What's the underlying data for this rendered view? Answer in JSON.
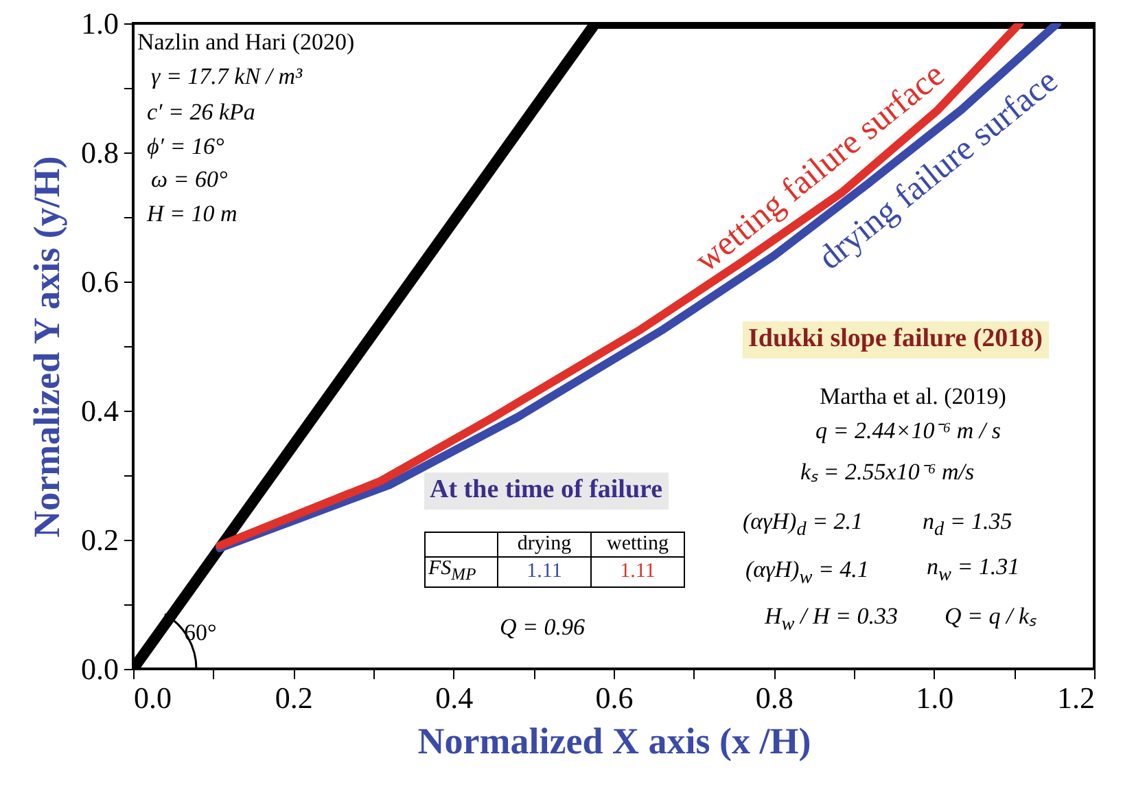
{
  "chart_data": {
    "type": "line",
    "xlabel": "Normalized X axis (x /H)",
    "ylabel": "Normalized Y axis (y/H)",
    "xlim": [
      0,
      1.2
    ],
    "ylim": [
      0,
      1.0
    ],
    "xticks": [
      {
        "value": 0,
        "label": "0.0"
      },
      {
        "value": 0.1,
        "label": null
      },
      0.2,
      {
        "value": 0.3,
        "label": null
      },
      0.4,
      {
        "value": 0.5,
        "label": null
      },
      0.6,
      {
        "value": 0.7,
        "label": null
      },
      0.8,
      {
        "value": 0.9,
        "label": null
      },
      {
        "value": 1.0,
        "label": "1.0"
      },
      {
        "value": 1.1,
        "label": null
      },
      1.2
    ],
    "yticks": [
      {
        "value": 0,
        "label": "0.0"
      },
      {
        "value": 0.1,
        "label": null
      },
      0.2,
      {
        "value": 0.3,
        "label": null
      },
      0.4,
      {
        "value": 0.5,
        "label": null
      },
      0.6,
      {
        "value": 0.7,
        "label": null
      },
      0.8,
      {
        "value": 0.9,
        "label": null
      },
      {
        "value": 1.0,
        "label": "1.0"
      }
    ],
    "series": [
      {
        "color": "#000000",
        "x": [
          0,
          0.577,
          1.2
        ],
        "values": [
          0,
          1.0,
          1.0
        ]
      },
      {
        "name": "drying failure surface",
        "color": "#3a4aaa",
        "x": [
          0.108,
          0.32,
          0.48,
          0.662,
          0.8,
          0.919,
          1.034,
          1.154
        ],
        "values": [
          0.187,
          0.285,
          0.39,
          0.526,
          0.64,
          0.753,
          0.866,
          1.0
        ]
      },
      {
        "name": "wetting failure surface",
        "color": "#e0312a",
        "x": [
          0.108,
          0.309,
          0.45,
          0.634,
          0.76,
          0.885,
          1.005,
          1.107
        ],
        "values": [
          0.191,
          0.291,
          0.39,
          0.526,
          0.63,
          0.738,
          0.866,
          1.0
        ]
      }
    ],
    "annotations": [
      "Nazlin and Hari (2020)",
      "γ = 17.7 kN / m³",
      "c′ = 26 kPa",
      "ϕ′ = 16°",
      "ω = 60°",
      "H = 10 m",
      "60°",
      "Idukki slope failure (2018)",
      "Martha et al. (2019)",
      "q = 2.44×10⁻⁶ m / s",
      "kₛ = 2.55x10⁻⁶ m/s",
      "(αγH)$_{d}$ = 2.1",
      "n$_{d}$ = 1.35",
      "(αγH)$_{w}$ = 4.1",
      "n$_{w}$ = 1.31",
      "H$_{w}$ / H = 0.33",
      "Q = q / kₛ",
      "At the time of failure",
      "drying",
      "wetting",
      "FS$_{MP}$",
      "1.11",
      "1.11",
      "Q = 0.96"
    ]
  }
}
